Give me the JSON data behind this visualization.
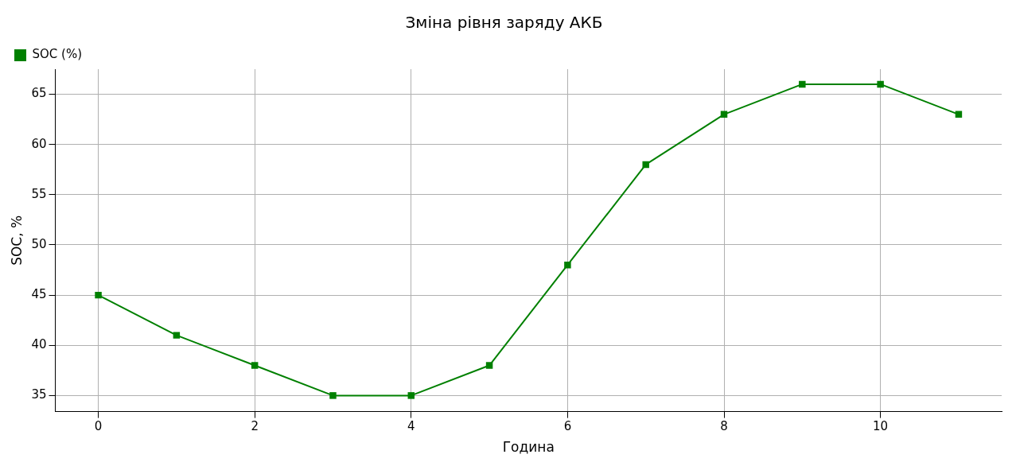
{
  "chart_data": {
    "type": "line",
    "title": "Зміна рівня заряду АКБ",
    "xlabel": "Година",
    "ylabel": "SOC, %",
    "x": [
      0,
      1,
      2,
      3,
      4,
      5,
      6,
      7,
      8,
      9,
      10,
      11
    ],
    "series": [
      {
        "name": "SOC (%)",
        "color": "#008000",
        "values": [
          45,
          41,
          38,
          35,
          35,
          38,
          48,
          58,
          63,
          66,
          66,
          63
        ]
      }
    ],
    "xlim": [
      -0.55,
      11.55
    ],
    "xticks": [
      0,
      2,
      4,
      6,
      8,
      10
    ],
    "ylim": [
      33.4,
      67.5
    ],
    "yticks": [
      35,
      40,
      45,
      50,
      55,
      60,
      65
    ],
    "grid": true,
    "legend": "top left",
    "marker": "square",
    "line_style": "solid"
  }
}
